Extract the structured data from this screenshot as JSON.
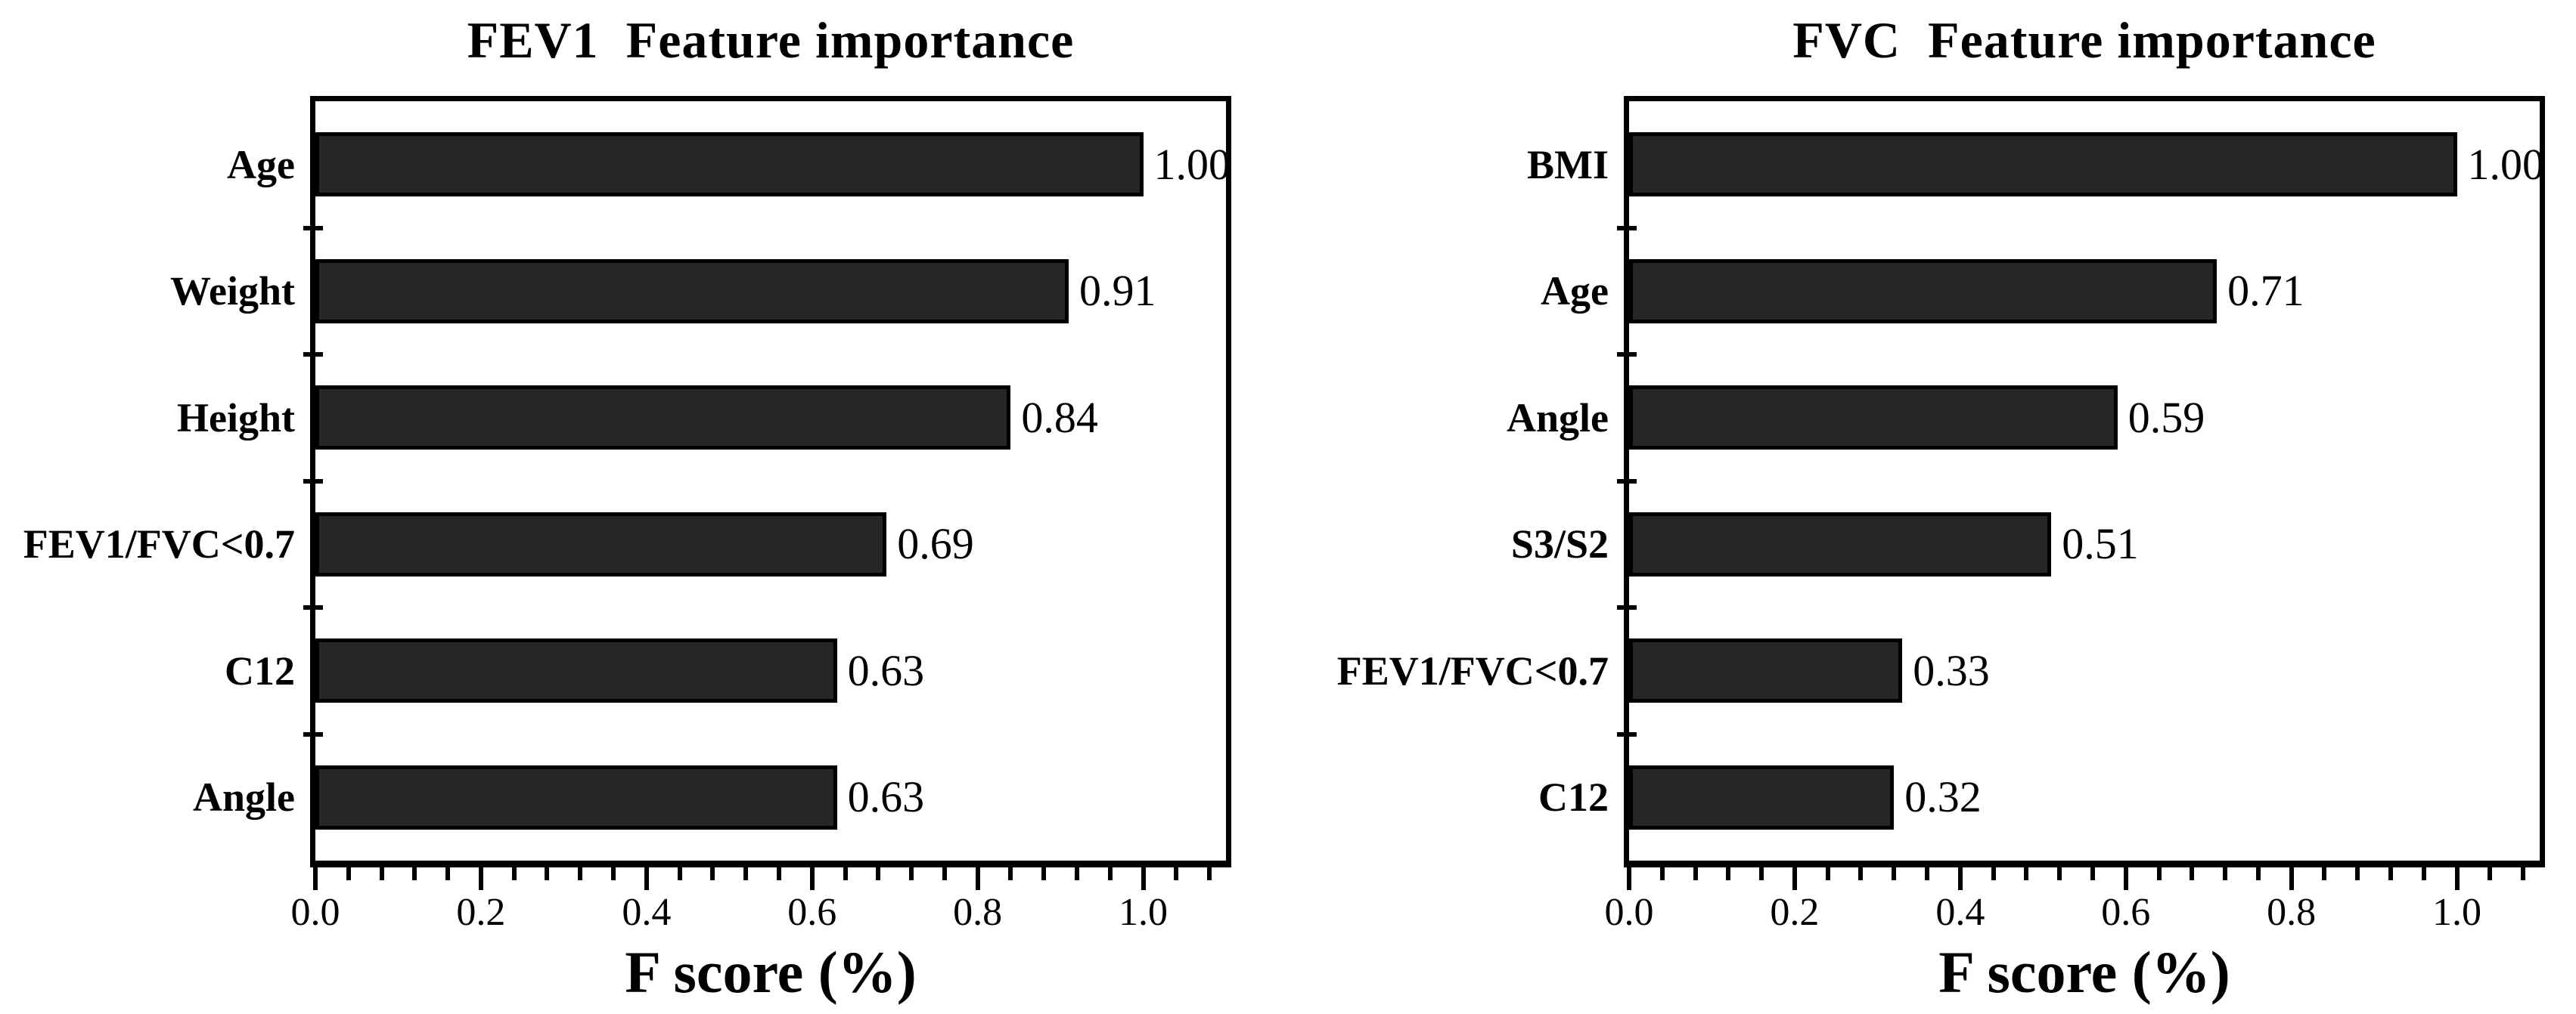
{
  "figure": {
    "background": "#ffffff",
    "bar_fill": "#262626",
    "bar_edge": "#000000",
    "axis_color": "#000000"
  },
  "chart_data": [
    {
      "type": "bar",
      "orientation": "horizontal",
      "title": "FEV1  Feature importance",
      "xlabel": "F score (%)",
      "categories": [
        "Age",
        "Weight",
        "Height",
        "FEV1/FVC<0.7",
        "C12",
        "Angle"
      ],
      "values": [
        1.0,
        0.91,
        0.84,
        0.69,
        0.63,
        0.63
      ],
      "value_labels": [
        "1.00",
        "0.91",
        "0.84",
        "0.69",
        "0.63",
        "0.63"
      ],
      "xlim": [
        0,
        1.1
      ],
      "x_major_ticks": [
        0.0,
        0.2,
        0.4,
        0.6,
        0.8,
        1.0
      ],
      "x_major_tick_labels": [
        "0.0",
        "0.2",
        "0.4",
        "0.6",
        "0.8",
        "1.0"
      ],
      "x_minor_tick_step": 0.04,
      "grid": false,
      "legend": null
    },
    {
      "type": "bar",
      "orientation": "horizontal",
      "title": "FVC  Feature importance",
      "xlabel": "F score (%)",
      "categories": [
        "BMI",
        "Age",
        "Angle",
        "S3/S2",
        "FEV1/FVC<0.7",
        "C12"
      ],
      "values": [
        1.0,
        0.71,
        0.59,
        0.51,
        0.33,
        0.32
      ],
      "value_labels": [
        "1.00",
        "0.71",
        "0.59",
        "0.51",
        "0.33",
        "0.32"
      ],
      "xlim": [
        0,
        1.1
      ],
      "x_major_ticks": [
        0.0,
        0.2,
        0.4,
        0.6,
        0.8,
        1.0
      ],
      "x_major_tick_labels": [
        "0.0",
        "0.2",
        "0.4",
        "0.6",
        "0.8",
        "1.0"
      ],
      "x_minor_tick_step": 0.04,
      "grid": false,
      "legend": null
    }
  ]
}
